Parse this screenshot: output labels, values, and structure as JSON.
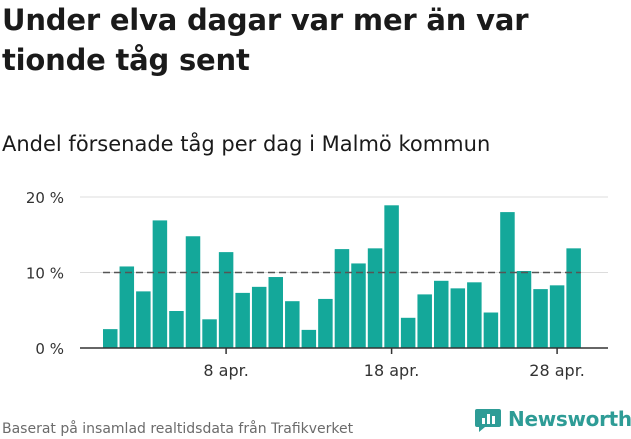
{
  "title": "Under elva dagar var mer än var tionde tåg sent",
  "subtitle": "Andel försenade tåg per dag i Malmö kommun",
  "footer": "Baserat på insamlad realtidsdata från Trafikverket",
  "brand": {
    "name": "Newsworthy",
    "icon": "newsworthy-logo-icon",
    "color": "#2e9c96"
  },
  "chart_data": {
    "type": "bar",
    "title": "Andel försenade tåg per dag i Malmö kommun",
    "xlabel": "",
    "ylabel": "",
    "ylim": [
      0,
      20
    ],
    "yticks": [
      0,
      10,
      20
    ],
    "ytick_labels": [
      "0 %",
      "10 %",
      "20 %"
    ],
    "xtick_labels": [
      "8 apr.",
      "18 apr.",
      "28 apr."
    ],
    "xtick_positions": [
      "2023-04-08",
      "2023-04-18",
      "2023-04-28"
    ],
    "bar_color": "#14a89a",
    "reference_line": {
      "value": 10,
      "style": "dashed",
      "color": "#555555"
    },
    "grid": true,
    "categories": [
      "2023-04-01",
      "2023-04-02",
      "2023-04-03",
      "2023-04-04",
      "2023-04-05",
      "2023-04-06",
      "2023-04-07",
      "2023-04-08",
      "2023-04-09",
      "2023-04-10",
      "2023-04-11",
      "2023-04-12",
      "2023-04-13",
      "2023-04-14",
      "2023-04-15",
      "2023-04-16",
      "2023-04-17",
      "2023-04-18",
      "2023-04-19",
      "2023-04-20",
      "2023-04-21",
      "2023-04-22",
      "2023-04-23",
      "2023-04-24",
      "2023-04-25",
      "2023-04-26",
      "2023-04-27",
      "2023-04-28",
      "2023-04-29"
    ],
    "values": [
      2.5,
      10.8,
      7.5,
      16.9,
      4.9,
      14.8,
      3.8,
      12.7,
      7.3,
      8.1,
      9.4,
      6.2,
      2.4,
      6.5,
      13.1,
      11.2,
      13.2,
      18.9,
      4.0,
      7.1,
      8.9,
      7.9,
      8.7,
      4.7,
      18.0,
      10.2,
      7.8,
      8.3,
      13.2
    ]
  }
}
